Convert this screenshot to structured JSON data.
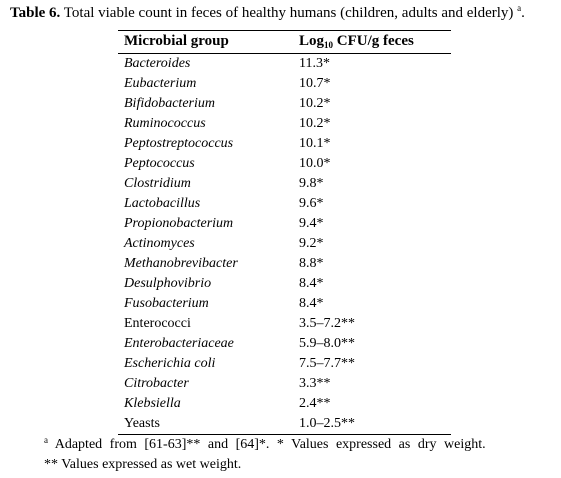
{
  "caption": {
    "label": "Table 6.",
    "text": "Total viable count in feces of healthy humans (children, adults and elderly)",
    "sup": "a",
    "end": "."
  },
  "table": {
    "header": {
      "col1": "Microbial group",
      "col2_prefix": "Log",
      "col2_sub": "10",
      "col2_suffix": " CFU/g feces"
    },
    "rows": [
      {
        "group": "Bacteroides",
        "value": "11.3*"
      },
      {
        "group": "Eubacterium",
        "value": "10.7*"
      },
      {
        "group": "Bifidobacterium",
        "value": "10.2*"
      },
      {
        "group": "Ruminococcus",
        "value": "10.2*"
      },
      {
        "group": "Peptostreptococcus",
        "value": "10.1*"
      },
      {
        "group": "Peptococcus",
        "value": "10.0*"
      },
      {
        "group": "Clostridium",
        "value": "9.8*"
      },
      {
        "group": "Lactobacillus",
        "value": "9.6*"
      },
      {
        "group": "Propionobacterium",
        "value": "9.4*"
      },
      {
        "group": "Actinomyces",
        "value": "9.2*"
      },
      {
        "group": "Methanobrevibacter",
        "value": "8.8*"
      },
      {
        "group": "Desulphovibrio",
        "value": "8.4*"
      },
      {
        "group": "Fusobacterium",
        "value": "8.4*"
      },
      {
        "group": "Enterococci",
        "value": "3.5–7.2**"
      },
      {
        "group": "Enterobacteriaceae",
        "value": "5.9–8.0**"
      },
      {
        "group": "Escherichia coli",
        "value": "7.5–7.7**"
      },
      {
        "group": "Citrobacter",
        "value": "3.3**"
      },
      {
        "group": "Klebsiella",
        "value": "2.4**"
      },
      {
        "group": "Yeasts",
        "value": "1.0–2.5**"
      }
    ]
  },
  "footnotes": {
    "note1_sup": "a",
    "note1_text": " Adapted from [61-63]** and [64]*. * Values expressed as dry weight.",
    "note2_text": "** Values expressed as wet weight."
  }
}
